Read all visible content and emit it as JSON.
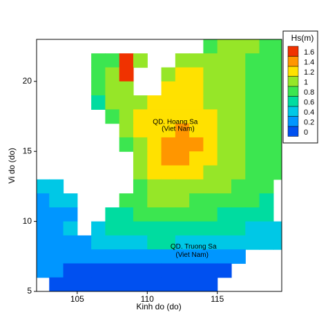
{
  "chart_data": {
    "type": "contour",
    "xlabel": "Kinh do (do)",
    "ylabel": "Vi do (do)",
    "xlim": [
      102.1,
      119.6
    ],
    "ylim": [
      5,
      23
    ],
    "xticks": [
      105,
      110,
      115
    ],
    "yticks": [
      5,
      10,
      15,
      20
    ],
    "x": [
      102.5,
      103.5,
      104.5,
      105.5,
      106.5,
      107.5,
      108.5,
      109.5,
      110.5,
      111.5,
      112.5,
      113.5,
      114.5,
      115.5,
      116.5,
      117.5,
      118.5,
      119.5
    ],
    "y": [
      22.5,
      21.5,
      20.5,
      19.5,
      18.5,
      17.5,
      16.5,
      15.5,
      14.5,
      13.5,
      12.5,
      11.5,
      10.5,
      9.5,
      8.5,
      7.5,
      6.5,
      5.5
    ],
    "z": [
      [
        null,
        null,
        null,
        null,
        null,
        null,
        null,
        null,
        null,
        null,
        null,
        null,
        0.9,
        1.0,
        1.0,
        1.0,
        0.9,
        0.9
      ],
      [
        null,
        null,
        null,
        null,
        0.8,
        0.9,
        1.6,
        1.0,
        null,
        null,
        1.1,
        1.1,
        1.0,
        1.0,
        1.0,
        0.9,
        0.9,
        0.9
      ],
      [
        null,
        null,
        null,
        null,
        0.8,
        1.0,
        1.6,
        null,
        null,
        1.1,
        1.2,
        1.2,
        1.1,
        1.0,
        1.0,
        0.9,
        0.9,
        0.9
      ],
      [
        null,
        null,
        null,
        null,
        0.8,
        1.0,
        1.1,
        null,
        null,
        1.2,
        1.2,
        1.2,
        1.1,
        1.0,
        1.0,
        0.9,
        0.9,
        0.9
      ],
      [
        null,
        null,
        null,
        null,
        0.7,
        1.0,
        1.1,
        1.1,
        1.2,
        1.2,
        1.3,
        1.2,
        1.1,
        1.0,
        1.0,
        0.9,
        0.9,
        0.9
      ],
      [
        null,
        null,
        null,
        null,
        null,
        0.9,
        1.1,
        1.2,
        1.2,
        1.3,
        1.3,
        1.2,
        1.2,
        1.0,
        1.0,
        0.9,
        0.9,
        0.8
      ],
      [
        null,
        null,
        null,
        null,
        null,
        null,
        1.0,
        1.2,
        1.3,
        1.3,
        1.4,
        1.3,
        1.2,
        1.1,
        1.0,
        0.9,
        0.9,
        0.8
      ],
      [
        null,
        null,
        null,
        null,
        null,
        null,
        0.9,
        1.1,
        1.3,
        1.4,
        1.5,
        1.4,
        1.2,
        1.1,
        1.0,
        0.9,
        0.8,
        0.8
      ],
      [
        null,
        null,
        null,
        null,
        null,
        null,
        null,
        1.1,
        1.2,
        1.4,
        1.4,
        1.3,
        1.2,
        1.1,
        1.0,
        0.9,
        0.8,
        0.8
      ],
      [
        null,
        null,
        null,
        null,
        null,
        null,
        null,
        1.0,
        1.2,
        1.2,
        1.2,
        1.2,
        1.1,
        1.0,
        1.0,
        0.9,
        0.8,
        0.8
      ],
      [
        0.4,
        0.4,
        null,
        null,
        null,
        null,
        null,
        0.9,
        1.1,
        1.1,
        1.1,
        1.0,
        1.0,
        1.0,
        0.9,
        0.9,
        0.8,
        null
      ],
      [
        0.3,
        0.4,
        0.4,
        null,
        null,
        null,
        0.8,
        0.9,
        1.0,
        1.0,
        1.0,
        0.9,
        0.9,
        0.9,
        0.8,
        0.8,
        0.7,
        null
      ],
      [
        0.3,
        0.3,
        0.3,
        null,
        null,
        0.6,
        0.7,
        0.8,
        0.8,
        0.8,
        0.8,
        0.8,
        0.8,
        0.7,
        0.7,
        0.6,
        0.6,
        null
      ],
      [
        0.3,
        0.3,
        0.4,
        null,
        0.5,
        0.6,
        0.6,
        0.7,
        0.7,
        0.7,
        0.7,
        0.6,
        0.6,
        0.6,
        0.6,
        0.5,
        0.5,
        0.5
      ],
      [
        0.3,
        0.3,
        0.3,
        0.3,
        0.4,
        0.5,
        0.5,
        0.5,
        0.6,
        0.6,
        0.5,
        0.5,
        0.5,
        0.5,
        0.4,
        0.4,
        0.4,
        0.4
      ],
      [
        0.3,
        0.3,
        0.3,
        0.3,
        0.3,
        0.3,
        0.3,
        0.3,
        0.3,
        0.3,
        0.3,
        0.3,
        0.3,
        0.2,
        0.2,
        null,
        null,
        null
      ],
      [
        0.2,
        0.2,
        0.1,
        0.1,
        0.1,
        0.1,
        0.1,
        0.1,
        0.1,
        0.1,
        0.1,
        0.1,
        0.1,
        0.1,
        null,
        null,
        null,
        null
      ],
      [
        null,
        0.1,
        0.1,
        0.1,
        0.1,
        0.1,
        0.1,
        0.1,
        0.1,
        0.1,
        0.1,
        0.1,
        0.1,
        null,
        null,
        null,
        null,
        null
      ]
    ],
    "colorbar_title": "Hs(m)",
    "levels": [
      0,
      0.2,
      0.4,
      0.6,
      0.8,
      1,
      1.2,
      1.4,
      1.6
    ],
    "colors": [
      "#0050f0",
      "#0096ff",
      "#00c8e6",
      "#00dca0",
      "#3ce650",
      "#96e628",
      "#ffe100",
      "#ff9600",
      "#f03200"
    ],
    "annotations": [
      {
        "text": "QD. Hoang Sa",
        "x": 112.0,
        "y": 17.1
      },
      {
        "text": "(Viet Nam)",
        "x": 112.2,
        "y": 16.6
      },
      {
        "text": "QD. Truong Sa",
        "x": 113.3,
        "y": 8.2
      },
      {
        "text": "(Viet Nam)",
        "x": 113.2,
        "y": 7.6
      }
    ]
  }
}
